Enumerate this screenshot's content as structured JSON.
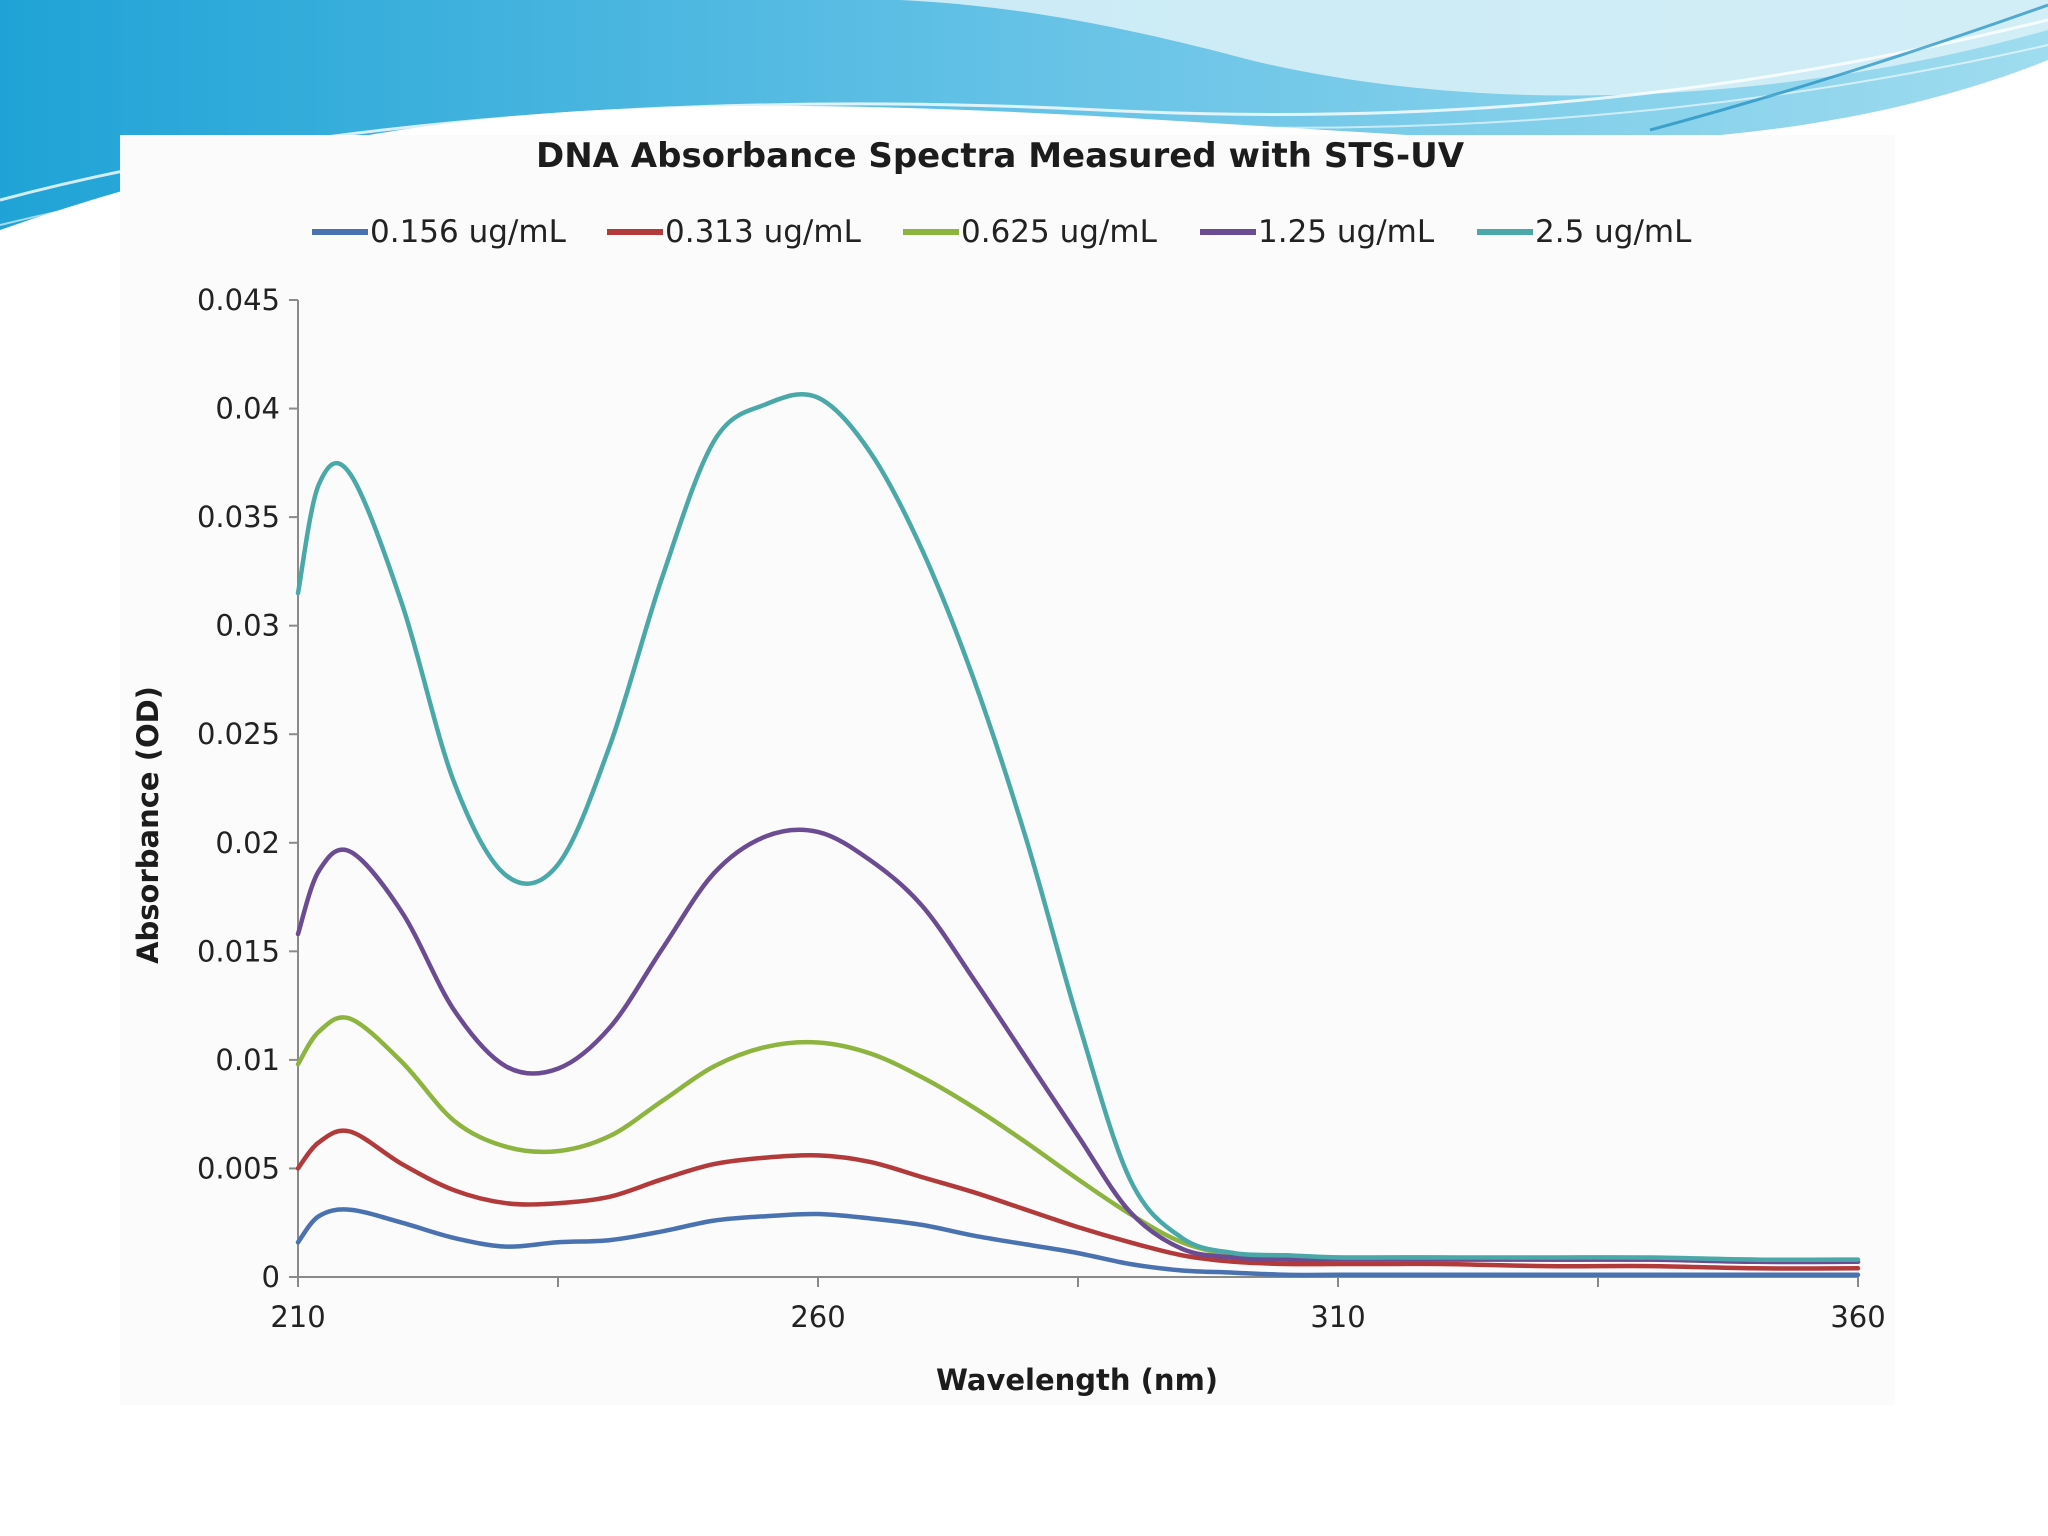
{
  "chart_data": {
    "type": "line",
    "title": "DNA Absorbance Spectra Measured with STS-UV",
    "xlabel": "Wavelength (nm)",
    "ylabel": "Absorbance (OD)",
    "xlim": [
      210,
      360
    ],
    "ylim": [
      0,
      0.045
    ],
    "x_ticks": [
      210,
      260,
      310,
      360
    ],
    "x_tick_labels": [
      "210",
      "260",
      "310",
      "360"
    ],
    "x_minor_ticks": [
      235,
      285,
      335
    ],
    "y_ticks": [
      0,
      0.005,
      0.01,
      0.015,
      0.02,
      0.025,
      0.03,
      0.035,
      0.04,
      0.045
    ],
    "y_tick_labels": [
      "0",
      "0.005",
      "0.01",
      "0.015",
      "0.02",
      "0.025",
      "0.03",
      "0.035",
      "0.04",
      "0.045"
    ],
    "grid": false,
    "legend_position": "top",
    "x": [
      210,
      212,
      215,
      220,
      225,
      230,
      235,
      240,
      245,
      250,
      255,
      260,
      265,
      270,
      275,
      280,
      285,
      290,
      295,
      300,
      305,
      310,
      315,
      320,
      330,
      340,
      350,
      360
    ],
    "series": [
      {
        "name": "0.156 ug/mL",
        "color": "#4a72b0",
        "values": [
          0.0016,
          0.0028,
          0.0031,
          0.0025,
          0.0018,
          0.0014,
          0.0016,
          0.0017,
          0.0021,
          0.0026,
          0.0028,
          0.0029,
          0.0027,
          0.0024,
          0.0019,
          0.0015,
          0.0011,
          0.0006,
          0.0003,
          0.0002,
          0.0001,
          0.0001,
          0.0001,
          0.0001,
          0.0001,
          0.0001,
          0.0001,
          0.0001
        ]
      },
      {
        "name": "0.313 ug/mL",
        "color": "#b33a3a",
        "values": [
          0.005,
          0.0062,
          0.0067,
          0.0052,
          0.004,
          0.0034,
          0.0034,
          0.0037,
          0.0045,
          0.0052,
          0.0055,
          0.0056,
          0.0053,
          0.0046,
          0.0039,
          0.0031,
          0.0023,
          0.0016,
          0.001,
          0.0007,
          0.0006,
          0.0006,
          0.0006,
          0.0006,
          0.0005,
          0.0005,
          0.0004,
          0.0004
        ]
      },
      {
        "name": "0.625 ug/mL",
        "color": "#8db43f",
        "values": [
          0.0098,
          0.0113,
          0.0119,
          0.0099,
          0.0072,
          0.006,
          0.0058,
          0.0065,
          0.0081,
          0.0097,
          0.0106,
          0.0108,
          0.0103,
          0.0092,
          0.0078,
          0.0062,
          0.0045,
          0.0029,
          0.0016,
          0.001,
          0.0009,
          0.0009,
          0.0009,
          0.0009,
          0.0008,
          0.0008,
          0.0008,
          0.0007
        ]
      },
      {
        "name": "1.25 ug/mL",
        "color": "#6b4c93",
        "values": [
          0.0158,
          0.0187,
          0.0196,
          0.0168,
          0.0123,
          0.0097,
          0.0096,
          0.0115,
          0.0151,
          0.0186,
          0.0203,
          0.0205,
          0.0192,
          0.0171,
          0.0137,
          0.0101,
          0.0065,
          0.003,
          0.0013,
          0.0009,
          0.0008,
          0.0008,
          0.0008,
          0.0008,
          0.0008,
          0.0008,
          0.0007,
          0.0007
        ]
      },
      {
        "name": "2.5 ug/mL",
        "color": "#4aa8a8",
        "values": [
          0.0315,
          0.0365,
          0.037,
          0.031,
          0.0228,
          0.0185,
          0.019,
          0.0245,
          0.0322,
          0.0385,
          0.0402,
          0.0405,
          0.038,
          0.0335,
          0.0275,
          0.0202,
          0.0118,
          0.0045,
          0.0018,
          0.0011,
          0.001,
          0.0009,
          0.0009,
          0.0009,
          0.0009,
          0.0009,
          0.0008,
          0.0008
        ]
      }
    ]
  },
  "theme": {
    "wave_dark": "#2e9fcf",
    "wave_mid": "#6fc7e6",
    "wave_light": "#bfe7f3",
    "axis_color": "#8a8a8a"
  }
}
